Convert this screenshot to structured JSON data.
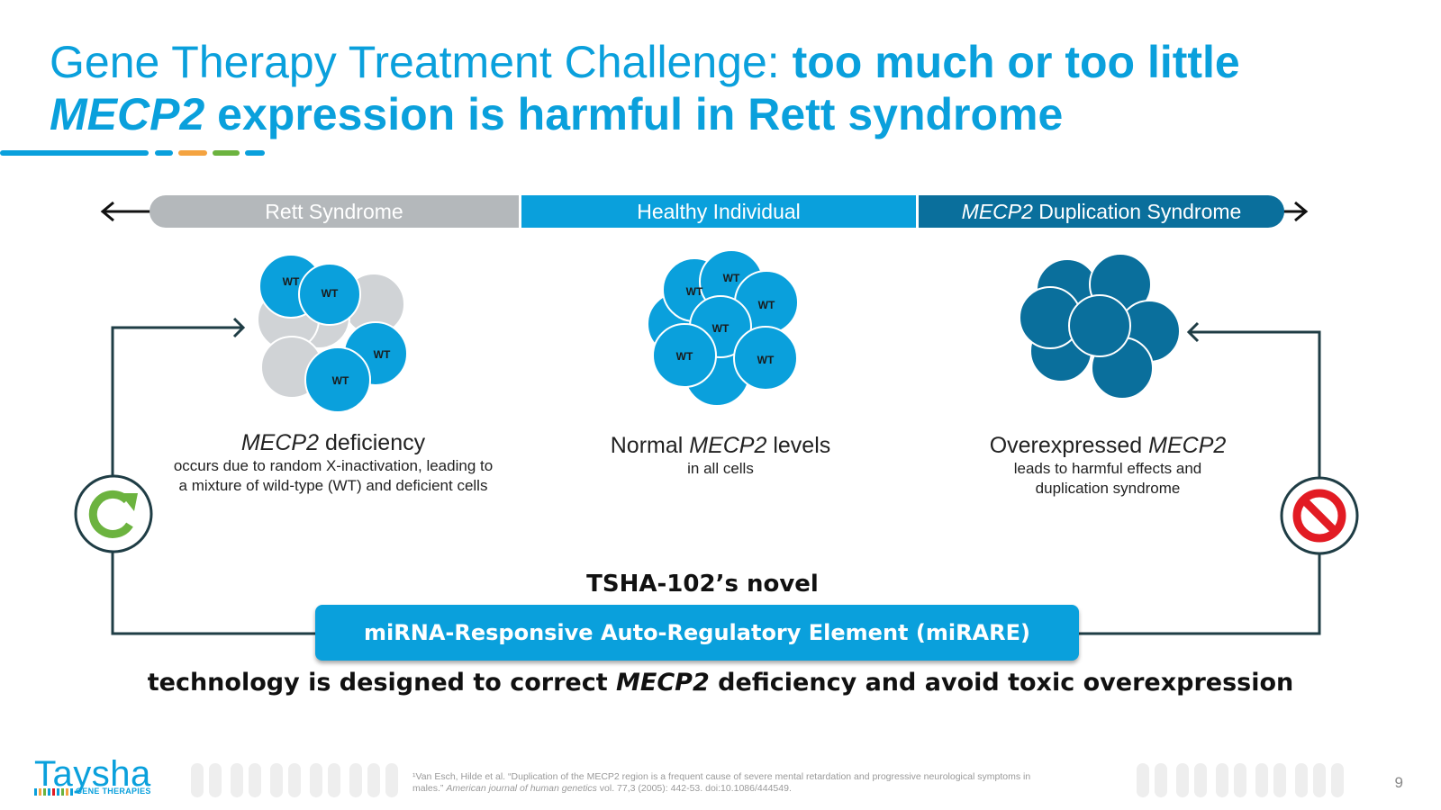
{
  "title": {
    "line1_regular": "Gene Therapy Treatment Challenge: ",
    "line1_bold": "too much or too little",
    "line2_italic": "MECP2",
    "line2_bold": " expression is harmful in Rett syndrome"
  },
  "spectrum": {
    "left_label": "Rett Syndrome",
    "middle_label": "Healthy Individual",
    "right_label_italic": "MECP2",
    "right_label_rest": " Duplication Syndrome",
    "colors": {
      "left": "#b4b8bb",
      "middle": "#0aa0dc",
      "right": "#0a6f9c"
    }
  },
  "cell_label": "WT",
  "columns": {
    "left": {
      "heading_italic": "MECP2",
      "heading_rest": " deficiency",
      "sub_line1": "occurs due to random X-inactivation, leading to",
      "sub_line2": "a mixture of wild-type (WT) and deficient cells"
    },
    "middle": {
      "heading_pre": "Normal ",
      "heading_italic": "MECP2",
      "heading_rest": " levels",
      "sub_line1": "in all cells"
    },
    "right": {
      "heading_pre": "Overexpressed ",
      "heading_italic": "MECP2",
      "sub_line1": "leads to harmful effects and",
      "sub_line2": "duplication syndrome"
    }
  },
  "tsha_line": "TSHA-102’s novel",
  "mirare_label": "miRNA-Responsive Auto-Regulatory Element (miRARE)",
  "bottom_line": {
    "pre": "technology is designed to correct ",
    "italic": "MECP2",
    "post": " deficiency and avoid toxic overexpression"
  },
  "footnote": {
    "line1": "¹Van Esch, Hilde et al. “Duplication of the MECP2 region is a frequent cause of severe mental retardation and progressive neurological symptoms in",
    "line2_pre": "males.” ",
    "line2_italic": "American journal of human genetics",
    "line2_post": " vol. 77,3 (2005): 442-53. doi:10.1086/444549."
  },
  "logo": {
    "name": "Taysha",
    "subtitle": "GENE THERAPIES"
  },
  "page_number": "9",
  "icons": {
    "left_cycle": "refresh-cycle-icon",
    "right_stop": "prohibited-icon"
  },
  "accent_colors": {
    "brand_blue": "#0aa0dc",
    "dark_blue": "#0a6f9c",
    "green": "#6cb33f",
    "red": "#e21b23",
    "orange": "#f4a340"
  }
}
